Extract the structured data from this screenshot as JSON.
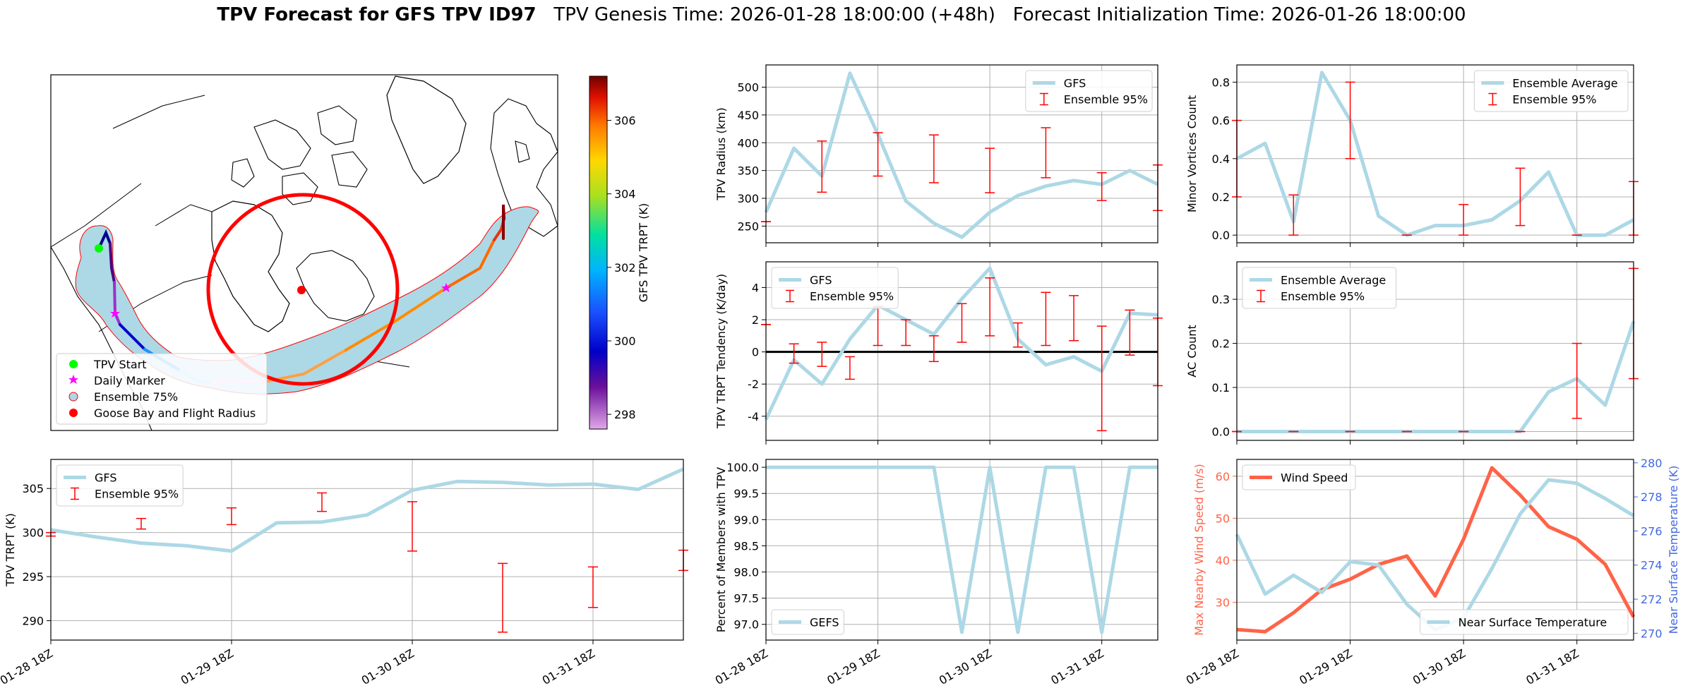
{
  "figure": {
    "title_bold": "TPV Forecast for GFS TPV ID97",
    "title_rest": "   TPV Genesis Time: 2026-01-28 18:00:00 (+48h)   Forecast Initialization Time: 2026-01-26 18:00:00"
  },
  "colors": {
    "gfs_line": "#add8e6",
    "ensemble_err": "#ff0000",
    "wind": "#ff6347",
    "temp_axis": "#4169e1",
    "wind_axis": "#ff6347"
  },
  "map": {
    "colorbar_label": "GFS TPV TRPT (K)",
    "colorbar_ticks": [
      298,
      300,
      302,
      304,
      306
    ],
    "colorbar_range": [
      297.6,
      307.2
    ],
    "legend": [
      {
        "label": "TPV Start",
        "marker": "circle",
        "color": "#00ff00"
      },
      {
        "label": "Daily Marker",
        "marker": "star",
        "color": "#ff00ff"
      },
      {
        "label": "Ensemble 75%",
        "marker": "circle-outline",
        "color": "#add8e6"
      },
      {
        "label": "Goose Bay and Flight Radius",
        "marker": "circle",
        "color": "#ff0000"
      }
    ]
  },
  "chart_data": [
    {
      "id": "radius",
      "type": "line",
      "x": [
        0,
        1,
        2,
        3,
        4,
        5,
        6,
        7,
        8,
        9,
        10,
        11,
        12,
        13,
        14
      ],
      "series": [
        {
          "name": "GFS",
          "values": [
            275,
            390,
            340,
            525,
            415,
            295,
            255,
            230,
            275,
            305,
            322,
            332,
            325,
            350,
            325
          ]
        }
      ],
      "errorbars": {
        "name": "Ensemble 95%",
        "x": [
          0,
          2,
          4,
          6,
          8,
          10,
          12,
          14
        ],
        "low": [
          258,
          311,
          340,
          328,
          310,
          337,
          296,
          278
        ],
        "high": [
          258,
          403,
          418,
          414,
          390,
          427,
          346,
          360
        ]
      },
      "ylabel": "TPV Radius (km)",
      "ylim": [
        220,
        540
      ],
      "yticks": [
        250,
        300,
        350,
        400,
        450,
        500
      ],
      "legend_loc": "upper right",
      "legend": [
        "GFS",
        "Ensemble 95%"
      ]
    },
    {
      "id": "tendency",
      "type": "line",
      "x": [
        0,
        1,
        2,
        3,
        4,
        5,
        6,
        7,
        8,
        9,
        10,
        11,
        12,
        13,
        14
      ],
      "series": [
        {
          "name": "GFS",
          "values": [
            -4.2,
            -0.5,
            -2.0,
            0.8,
            2.9,
            2.0,
            1.1,
            3.3,
            5.2,
            0.8,
            -0.8,
            -0.3,
            -1.2,
            2.4,
            2.3
          ]
        }
      ],
      "errorbars": {
        "name": "Ensemble 95%",
        "x": [
          0,
          1,
          2,
          3,
          4,
          5,
          6,
          7,
          8,
          9,
          10,
          11,
          12,
          13,
          14
        ],
        "low": [
          1.7,
          -0.7,
          -0.9,
          -1.7,
          0.4,
          0.4,
          -0.6,
          0.6,
          1.0,
          0.3,
          0.4,
          0.7,
          -4.9,
          -0.2,
          -2.1
        ],
        "high": [
          1.7,
          0.5,
          0.6,
          -0.3,
          2.8,
          2.0,
          1.0,
          3.0,
          4.6,
          1.8,
          3.7,
          3.5,
          1.6,
          2.6,
          2.1
        ]
      },
      "ylabel": "TPV TRPT Tendency (K/day)",
      "ylim": [
        -5.5,
        5.6
      ],
      "yticks": [
        -4,
        -2,
        0,
        2,
        4
      ],
      "hline": 0,
      "legend_loc": "upper left",
      "legend": [
        "GFS",
        "Ensemble 95%"
      ]
    },
    {
      "id": "minor",
      "type": "line",
      "x": [
        0,
        1,
        2,
        3,
        4,
        5,
        6,
        7,
        8,
        9,
        10,
        11,
        12,
        13,
        14
      ],
      "series": [
        {
          "name": "Ensemble Average",
          "values": [
            0.4,
            0.48,
            0.07,
            0.85,
            0.6,
            0.1,
            0.0,
            0.05,
            0.05,
            0.08,
            0.18,
            0.33,
            0.0,
            0.0,
            0.08
          ]
        }
      ],
      "errorbars": {
        "name": "Ensemble 95%",
        "x": [
          0,
          2,
          4,
          6,
          8,
          10,
          12,
          14
        ],
        "low": [
          0.2,
          0.0,
          0.4,
          0.0,
          0.0,
          0.05,
          0.0,
          0.0
        ],
        "high": [
          0.6,
          0.21,
          0.8,
          0.0,
          0.16,
          0.35,
          0.0,
          0.28
        ]
      },
      "ylabel": "Minor Vortices Count",
      "ylim": [
        -0.04,
        0.89
      ],
      "yticks": [
        0.0,
        0.2,
        0.4,
        0.6,
        0.8
      ],
      "legend_loc": "upper right",
      "legend": [
        "Ensemble Average",
        "Ensemble 95%"
      ]
    },
    {
      "id": "ac",
      "type": "line",
      "x": [
        0,
        1,
        2,
        3,
        4,
        5,
        6,
        7,
        8,
        9,
        10,
        11,
        12,
        13,
        14
      ],
      "series": [
        {
          "name": "Ensemble Average",
          "values": [
            0,
            0,
            0,
            0,
            0,
            0,
            0,
            0,
            0,
            0,
            0,
            0.09,
            0.12,
            0.06,
            0.25
          ]
        }
      ],
      "errorbars": {
        "name": "Ensemble 95%",
        "x": [
          0,
          2,
          4,
          6,
          8,
          10,
          12,
          14
        ],
        "low": [
          0,
          0,
          0,
          0,
          0,
          0,
          0.03,
          0.12
        ],
        "high": [
          0,
          0,
          0,
          0,
          0,
          0,
          0.2,
          0.37
        ]
      },
      "ylabel": "AC Count",
      "ylim": [
        -0.02,
        0.385
      ],
      "yticks": [
        0.0,
        0.1,
        0.2,
        0.3
      ],
      "legend_loc": "upper left",
      "legend": [
        "Ensemble Average",
        "Ensemble 95%"
      ]
    },
    {
      "id": "trpt",
      "type": "line",
      "x": [
        0,
        1,
        2,
        3,
        4,
        5,
        6,
        7,
        8,
        9,
        10,
        11,
        12,
        13,
        14
      ],
      "series": [
        {
          "name": "GFS",
          "values": [
            300.3,
            299.5,
            298.8,
            298.5,
            297.9,
            301.1,
            301.2,
            302.0,
            304.8,
            305.8,
            305.7,
            305.4,
            305.5,
            304.9,
            307.2
          ]
        }
      ],
      "errorbars": {
        "name": "Ensemble 95%",
        "x": [
          0,
          2,
          4,
          6,
          8,
          10,
          12,
          14
        ],
        "low": [
          299.6,
          300.4,
          300.9,
          302.4,
          297.9,
          288.7,
          291.5,
          295.7
        ],
        "high": [
          300.0,
          301.6,
          302.8,
          304.5,
          303.5,
          296.5,
          296.1,
          298.0
        ]
      },
      "ylabel": "TPV TRPT (K)",
      "ylim": [
        287.8,
        308.3
      ],
      "yticks": [
        290,
        295,
        300,
        305
      ],
      "legend_loc": "upper left",
      "legend": [
        "GFS",
        "Ensemble 95%"
      ]
    },
    {
      "id": "members",
      "type": "line",
      "x": [
        0,
        1,
        2,
        3,
        4,
        5,
        6,
        7,
        8,
        9,
        10,
        11,
        12,
        13,
        14
      ],
      "series": [
        {
          "name": "GEFS",
          "values": [
            100,
            100,
            100,
            100,
            100,
            100,
            100,
            96.85,
            100,
            96.85,
            100,
            100,
            96.85,
            100,
            100
          ]
        }
      ],
      "ylabel": "Percent of Members with TPV",
      "ylim": [
        96.7,
        100.15
      ],
      "yticks": [
        97.0,
        97.5,
        98.0,
        98.5,
        99.0,
        99.5,
        100.0
      ],
      "legend_loc": "lower left",
      "legend": [
        "GEFS"
      ]
    },
    {
      "id": "wind",
      "type": "line",
      "x": [
        0,
        1,
        2,
        3,
        4,
        5,
        6,
        7,
        8,
        9,
        10,
        11,
        12,
        13,
        14
      ],
      "series": [
        {
          "name": "Wind Speed",
          "axis": "left",
          "values": [
            23.5,
            23.0,
            27.5,
            33.0,
            35.5,
            39.0,
            41.0,
            31.5,
            45.0,
            62.0,
            55.5,
            48.0,
            45.0,
            39.0,
            26.5
          ]
        },
        {
          "name": "Near Surface Temperature",
          "axis": "right",
          "values": [
            275.8,
            272.3,
            273.4,
            272.4,
            274.2,
            274.0,
            271.7,
            270.2,
            270.9,
            273.8,
            277.0,
            279.0,
            278.8,
            277.9,
            276.9
          ]
        }
      ],
      "ylabel": "Max Nearby Wind Speed (m/s)",
      "ylim": [
        21,
        64
      ],
      "yticks": [
        30,
        40,
        50,
        60
      ],
      "y2label": "Near Surface Temperature (K)",
      "y2lim": [
        269.6,
        280.2
      ],
      "y2ticks": [
        270,
        272,
        274,
        276,
        278,
        280
      ],
      "legend_loc": "upper left",
      "legend": [
        "Wind Speed"
      ],
      "legend2_loc": "lower right",
      "legend2": [
        "Near Surface Temperature"
      ]
    }
  ],
  "xaxis": {
    "ticks": [
      0,
      4,
      8,
      12
    ],
    "labels": [
      "01-28 18Z",
      "01-29 18Z",
      "01-30 18Z",
      "01-31 18Z"
    ]
  }
}
